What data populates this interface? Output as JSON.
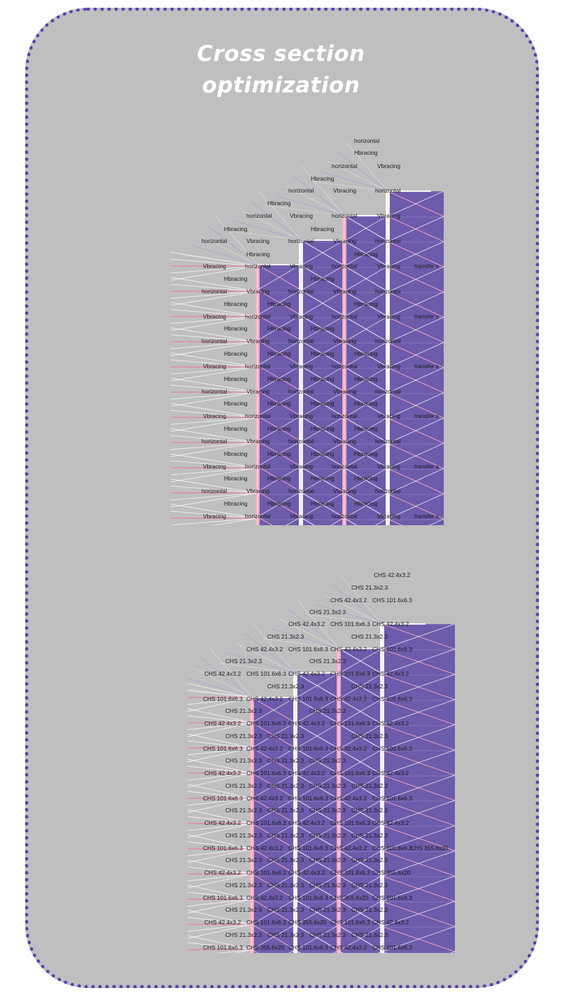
{
  "title": {
    "line1": "Cross section",
    "line2": "optimization"
  },
  "colors": {
    "card_bg": "#bfbfbf",
    "card_border": "#5b3fb0",
    "volume_fill": "#5a44a6",
    "brace_white": "#ffffff",
    "brace_pink": "#ffb0c8",
    "brace_red": "#ff5c8a",
    "brace_blue": "#8080ff"
  },
  "top_diagram": {
    "member_labels": {
      "h": "horizontal",
      "hb": "Hbracing",
      "vb": "Vbracing",
      "ts": "transfer s"
    }
  },
  "bottom_diagram": {
    "section_labels": {
      "a": "CHS 42.4x3.2",
      "b": "CHS 21.3x2.3",
      "c": "CHS 101.6x6.3",
      "d": "CHS 355.6x20"
    }
  }
}
